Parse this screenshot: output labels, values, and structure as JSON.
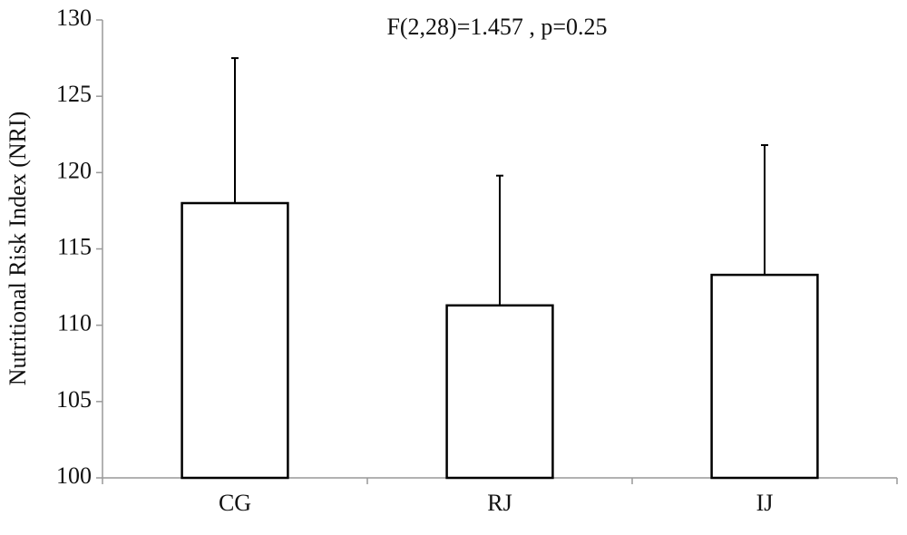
{
  "chart_data": {
    "type": "bar",
    "annotation": "F(2,28)=1.457 , p=0.25",
    "y_label": "Nutritional Risk Index (NRI)",
    "categories": [
      "CG",
      "RJ",
      "IJ"
    ],
    "values": [
      118.0,
      111.3,
      113.3
    ],
    "errors": [
      9.5,
      8.5,
      8.5
    ],
    "color": "#ffffff",
    "edge_color": "#000000",
    "ylim": [
      100,
      130
    ],
    "yticks": [
      100,
      105,
      110,
      115,
      120,
      125,
      130
    ],
    "grid": false
  }
}
